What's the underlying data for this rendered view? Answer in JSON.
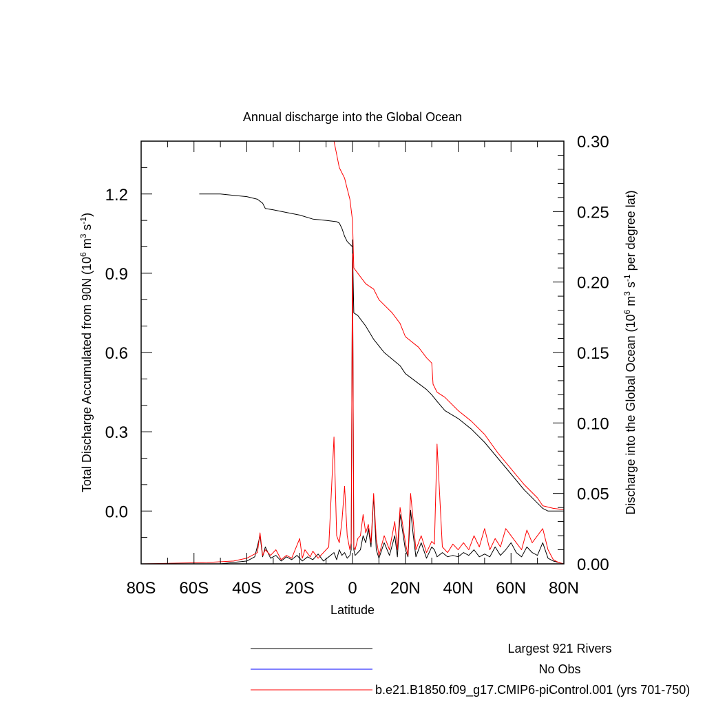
{
  "chart_data": {
    "type": "line",
    "title": "Annual discharge into the Global Ocean",
    "xlabel": "Latitude",
    "ylabel_left": "Total Discharge Accumulated from 90N (10^6 m^3 s^-1)",
    "ylabel_right": "Discharge into the Global Ocean (10^6 m^3 s^-1 per degree lat)",
    "xlim": [
      -80,
      80
    ],
    "ylim_left": [
      -0.2,
      1.4
    ],
    "ylim_right": [
      0,
      0.3
    ],
    "x_ticks": [
      {
        "value": -80,
        "label": "80S"
      },
      {
        "value": -60,
        "label": "60S"
      },
      {
        "value": -40,
        "label": "40S"
      },
      {
        "value": -20,
        "label": "20S"
      },
      {
        "value": 0,
        "label": "0"
      },
      {
        "value": 20,
        "label": "20N"
      },
      {
        "value": 40,
        "label": "40N"
      },
      {
        "value": 60,
        "label": "60N"
      },
      {
        "value": 80,
        "label": "80N"
      }
    ],
    "y_left_ticks": [
      {
        "value": 0.0,
        "label": "0.0"
      },
      {
        "value": 0.3,
        "label": "0.3"
      },
      {
        "value": 0.6,
        "label": "0.6"
      },
      {
        "value": 0.9,
        "label": "0.9"
      },
      {
        "value": 1.2,
        "label": "1.2"
      }
    ],
    "y_right_ticks": [
      {
        "value": 0.0,
        "label": "0.00"
      },
      {
        "value": 0.05,
        "label": "0.05"
      },
      {
        "value": 0.1,
        "label": "0.10"
      },
      {
        "value": 0.15,
        "label": "0.15"
      },
      {
        "value": 0.2,
        "label": "0.20"
      },
      {
        "value": 0.25,
        "label": "0.25"
      },
      {
        "value": 0.3,
        "label": "0.30"
      }
    ],
    "legend": [
      {
        "label": "Largest 921 Rivers",
        "color": "#000000"
      },
      {
        "label": "No Obs",
        "color": "#0000ff"
      },
      {
        "label": "b.e21.B1850.f09_g17.CMIP6-piControl.001 (yrs 701-750)",
        "color": "#ff0000"
      }
    ],
    "series": [
      {
        "name": "Largest 921 Rivers",
        "axis": "left",
        "color": "#000000",
        "x": [
          -58,
          -50,
          -45,
          -40,
          -36,
          -34,
          -33,
          -30,
          -25,
          -20,
          -15,
          -10,
          -6,
          -5,
          -4,
          -3,
          -2,
          -1,
          0,
          0.5,
          2,
          5,
          8,
          12,
          15,
          18,
          20,
          24,
          28,
          30,
          32,
          35,
          40,
          45,
          50,
          55,
          60,
          65,
          70,
          72,
          74,
          76,
          80
        ],
        "y": [
          1.2,
          1.2,
          1.195,
          1.19,
          1.18,
          1.165,
          1.145,
          1.14,
          1.13,
          1.12,
          1.105,
          1.1,
          1.095,
          1.09,
          1.07,
          1.04,
          1.02,
          1.01,
          1.0,
          0.75,
          0.74,
          0.7,
          0.65,
          0.6,
          0.575,
          0.55,
          0.52,
          0.49,
          0.46,
          0.44,
          0.415,
          0.38,
          0.35,
          0.31,
          0.26,
          0.2,
          0.14,
          0.08,
          0.03,
          0.01,
          0.0,
          0.0,
          0.0
        ]
      },
      {
        "name": "b.e21.B1850.f09_g17.CMIP6-piControl.001 (yrs 701-750)",
        "axis": "left",
        "color": "#ff0000",
        "x": [
          -7,
          -6,
          -5,
          -4,
          -3,
          -2,
          -1,
          0,
          0.5,
          2,
          5,
          8,
          10,
          15,
          18,
          20,
          25,
          28,
          30,
          30.5,
          32,
          35,
          40,
          45,
          50,
          55,
          60,
          65,
          70,
          72,
          74,
          76,
          80
        ],
        "y": [
          1.4,
          1.35,
          1.3,
          1.28,
          1.26,
          1.22,
          1.18,
          1.1,
          0.92,
          0.9,
          0.86,
          0.84,
          0.8,
          0.75,
          0.71,
          0.66,
          0.62,
          0.58,
          0.56,
          0.48,
          0.45,
          0.43,
          0.38,
          0.34,
          0.29,
          0.22,
          0.16,
          0.1,
          0.05,
          0.02,
          0.015,
          0.01,
          0.005
        ]
      },
      {
        "name": "Largest 921 Rivers",
        "axis": "right",
        "color": "#000000",
        "x": [
          -80,
          -50,
          -40,
          -37,
          -35,
          -34,
          -33,
          -31,
          -29,
          -27,
          -25,
          -23,
          -21,
          -19,
          -17,
          -15,
          -13,
          -11,
          -9,
          -7,
          -6,
          -5,
          -4,
          -3,
          -2,
          -1,
          -0.5,
          0,
          0.5,
          1,
          2,
          3,
          4,
          5,
          6,
          7,
          8,
          9,
          10,
          12,
          14,
          16,
          17,
          18,
          20,
          21,
          22,
          23,
          24,
          26,
          28,
          30,
          31,
          32,
          34,
          36,
          38,
          40,
          42,
          44,
          46,
          48,
          50,
          52,
          54,
          56,
          58,
          60,
          62,
          64,
          66,
          68,
          70,
          72,
          74,
          76,
          78,
          80
        ],
        "y": [
          0,
          0,
          0.002,
          0.005,
          0.02,
          0.005,
          0.012,
          0.004,
          0.006,
          0.002,
          0.005,
          0.003,
          0.006,
          0.002,
          0.005,
          0.003,
          0.007,
          0.002,
          0.005,
          0.008,
          0.003,
          0.01,
          0.006,
          0.008,
          0.004,
          0.006,
          0.01,
          0.23,
          0.01,
          0.006,
          0.008,
          0.01,
          0.02,
          0.015,
          0.025,
          0.012,
          0.048,
          0.01,
          0.004,
          0.015,
          0.006,
          0.02,
          0.005,
          0.035,
          0.01,
          0.005,
          0.038,
          0.02,
          0.005,
          0.015,
          0.004,
          0.012,
          0.01,
          0.005,
          0.008,
          0.005,
          0.006,
          0.005,
          0.008,
          0.006,
          0.01,
          0.005,
          0.007,
          0.005,
          0.012,
          0.006,
          0.01,
          0.015,
          0.008,
          0.005,
          0.012,
          0.008,
          0.006,
          0.015,
          0.004,
          0.002,
          0.001,
          0.0
        ]
      },
      {
        "name": "b.e21.B1850.f09_g17.CMIP6-piControl.001 (yrs 701-750)",
        "axis": "right",
        "color": "#ff0000",
        "x": [
          -80,
          -55,
          -45,
          -40,
          -36,
          -35,
          -34,
          -33,
          -31,
          -29,
          -27,
          -25,
          -23,
          -20,
          -19,
          -18,
          -16,
          -15,
          -13,
          -11,
          -9,
          -7,
          -6,
          -5,
          -4,
          -3,
          -2,
          -1,
          -0.5,
          0,
          0.5,
          1,
          2,
          3,
          4,
          5,
          6,
          7,
          8,
          9,
          10,
          12,
          14,
          16,
          17,
          18,
          20,
          21,
          22,
          23,
          24,
          26,
          28,
          30,
          31,
          32,
          34,
          36,
          38,
          40,
          42,
          44,
          46,
          48,
          50,
          52,
          54,
          56,
          58,
          60,
          62,
          64,
          66,
          68,
          70,
          72,
          74,
          76,
          78,
          80
        ],
        "y": [
          0,
          0.001,
          0.002,
          0.004,
          0.008,
          0.022,
          0.006,
          0.01,
          0.006,
          0.01,
          0.003,
          0.006,
          0.004,
          0.018,
          0.004,
          0.01,
          0.005,
          0.009,
          0.004,
          0.008,
          0.012,
          0.09,
          0.02,
          0.015,
          0.03,
          0.055,
          0.02,
          0.01,
          0.015,
          0.22,
          0.012,
          0.01,
          0.018,
          0.02,
          0.035,
          0.022,
          0.028,
          0.015,
          0.05,
          0.018,
          0.006,
          0.02,
          0.01,
          0.03,
          0.01,
          0.04,
          0.015,
          0.006,
          0.05,
          0.03,
          0.01,
          0.02,
          0.008,
          0.016,
          0.014,
          0.085,
          0.012,
          0.008,
          0.014,
          0.01,
          0.015,
          0.01,
          0.02,
          0.012,
          0.025,
          0.01,
          0.018,
          0.012,
          0.025,
          0.02,
          0.015,
          0.01,
          0.024,
          0.015,
          0.02,
          0.025,
          0.01,
          0.003,
          0.001,
          0.0
        ]
      }
    ]
  }
}
